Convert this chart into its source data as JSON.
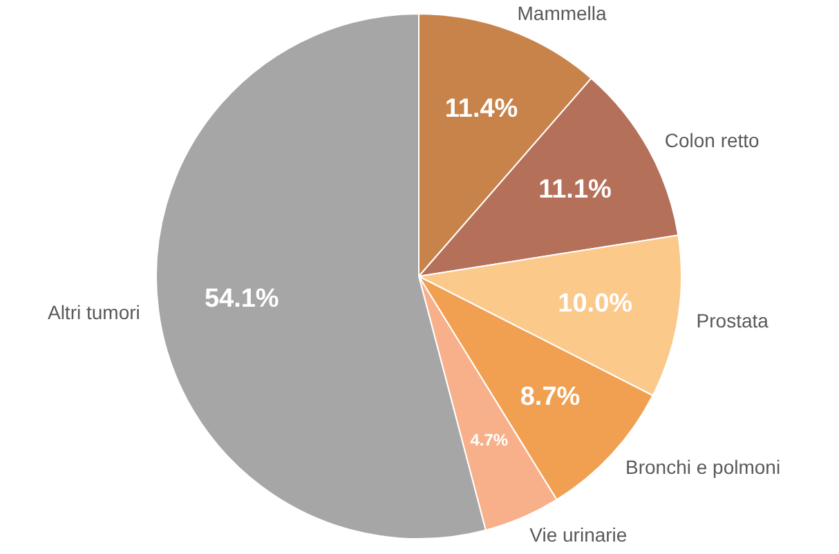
{
  "chart_data": {
    "type": "pie",
    "categories": [
      "Mammella",
      "Colon retto",
      "Prostata",
      "Bronchi e polmoni",
      "Vie urinarie",
      "Altri tumori"
    ],
    "values": [
      11.4,
      11.1,
      10.0,
      8.7,
      4.7,
      54.1
    ],
    "colors": [
      "#c8834a",
      "#b5705a",
      "#fbc98a",
      "#f0a050",
      "#f8b08a",
      "#a6a6a6"
    ],
    "value_labels": [
      "11.4%",
      "11.1%",
      "10.0%",
      "8.7%",
      "4.7%",
      "54.1%"
    ]
  }
}
